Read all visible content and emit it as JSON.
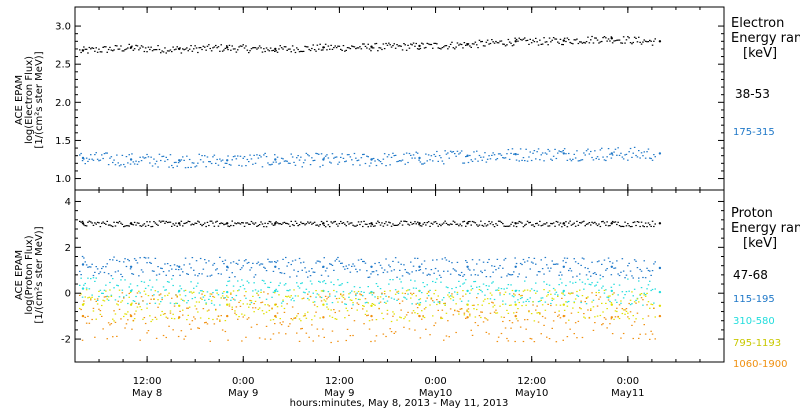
{
  "chart_data": [
    {
      "type": "scatter",
      "panel": "electron",
      "ylabel_lines": [
        "ACE EPAM",
        "log(Electron Flux)",
        "[1/(cm²s ster MeV)]"
      ],
      "yticks": [
        "3.0",
        "2.5",
        "2.0",
        "1.5",
        "1.0"
      ],
      "ylim": [
        0.85,
        3.25
      ],
      "legend_title_lines": [
        "Electron",
        "Energy ranges",
        "[keV]"
      ],
      "series": [
        {
          "name": "38-53",
          "color": "#000000",
          "x": [
            0,
            6,
            12,
            18,
            24,
            30,
            36,
            42,
            48,
            54,
            60,
            66,
            72
          ],
          "y": [
            2.68,
            2.72,
            2.7,
            2.72,
            2.7,
            2.72,
            2.73,
            2.74,
            2.76,
            2.8,
            2.81,
            2.84,
            2.8
          ]
        },
        {
          "name": "175-315",
          "color": "#1f78c8",
          "x": [
            0,
            6,
            12,
            18,
            24,
            30,
            36,
            42,
            48,
            54,
            60,
            66,
            72
          ],
          "y": [
            1.27,
            1.25,
            1.24,
            1.24,
            1.25,
            1.25,
            1.25,
            1.27,
            1.3,
            1.32,
            1.33,
            1.33,
            1.33
          ]
        }
      ]
    },
    {
      "type": "scatter",
      "panel": "proton",
      "ylabel_lines": [
        "ACE EPAM",
        "log(Proton Flux)",
        "[1/(cm²s ster MeV)]"
      ],
      "yticks": [
        "4",
        "2",
        "0",
        "-2"
      ],
      "ylim": [
        -3.0,
        4.5
      ],
      "legend_title_lines": [
        "Proton",
        "Energy ranges",
        "[keV]"
      ],
      "series": [
        {
          "name": "47-68",
          "color": "#000000",
          "x": [
            0,
            6,
            12,
            18,
            24,
            30,
            36,
            42,
            48,
            54,
            60,
            66,
            72
          ],
          "y": [
            3.05,
            3.05,
            3.05,
            3.05,
            3.05,
            3.05,
            3.05,
            3.05,
            3.05,
            3.05,
            3.05,
            3.05,
            3.05
          ]
        },
        {
          "name": "115-195",
          "color": "#1f78c8",
          "x": [
            0,
            6,
            12,
            18,
            24,
            30,
            36,
            42,
            48,
            54,
            60,
            66,
            72
          ],
          "y": [
            1.25,
            1.15,
            1.15,
            1.15,
            1.15,
            1.15,
            1.15,
            1.15,
            1.15,
            1.15,
            1.15,
            1.15,
            1.1
          ]
        },
        {
          "name": "310-580",
          "color": "#22dddd",
          "x": [
            0,
            6,
            12,
            18,
            24,
            30,
            36,
            42,
            48,
            54,
            60,
            66,
            72
          ],
          "y": [
            0.2,
            0.1,
            0.1,
            0.05,
            0.1,
            0.1,
            0.05,
            0.1,
            0.1,
            0.1,
            0.1,
            0.1,
            0.05
          ]
        },
        {
          "name": "795-1193",
          "color": "#e0e000",
          "x": [
            0,
            6,
            12,
            18,
            24,
            30,
            36,
            42,
            48,
            54,
            60,
            66,
            72
          ],
          "y": [
            -0.5,
            -0.5,
            -0.55,
            -0.5,
            -0.5,
            -0.5,
            -0.55,
            -0.5,
            -0.5,
            -0.5,
            -0.5,
            -0.5,
            -0.55
          ]
        },
        {
          "name": "1060-1900",
          "color": "#f09010",
          "x": [
            0,
            6,
            12,
            18,
            24,
            30,
            36,
            42,
            48,
            54,
            60,
            66,
            72
          ],
          "y": [
            -1.0,
            -1.0,
            -1.05,
            -1.0,
            -1.0,
            -1.05,
            -1.0,
            -1.0,
            -1.05,
            -1.0,
            -1.0,
            -1.05,
            -1.0
          ]
        }
      ]
    }
  ],
  "x_axis": {
    "unit": "hours since 2013-05-08 00:00",
    "xlim": [
      3,
      84
    ],
    "ticks": [
      {
        "x": 12,
        "line1": "12:00",
        "line2": "May 8"
      },
      {
        "x": 24,
        "line1": "0:00",
        "line2": "May 9"
      },
      {
        "x": 36,
        "line1": "12:00",
        "line2": "May 9"
      },
      {
        "x": 48,
        "line1": "0:00",
        "line2": "May10"
      },
      {
        "x": 60,
        "line1": "12:00",
        "line2": "May10"
      },
      {
        "x": 72,
        "line1": "0:00",
        "line2": "May11"
      }
    ],
    "xlabel": "hours:minutes, May  8, 2013 - May 11, 2013"
  }
}
